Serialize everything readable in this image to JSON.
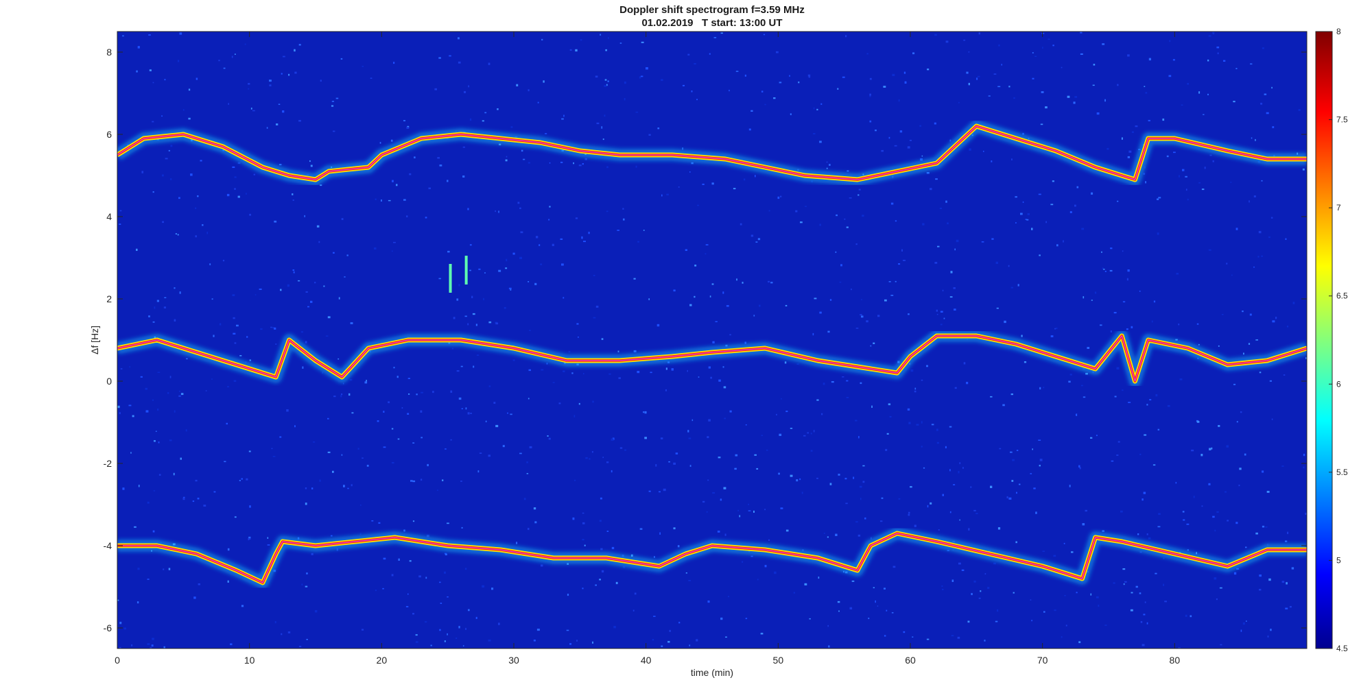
{
  "chart_data": {
    "type": "heatmap",
    "title": "Doppler shift spectrogram f=3.59 MHz",
    "subtitle": "01.02.2019   T start: 13:00 UT",
    "xlabel": "time (min)",
    "ylabel": "Δf [Hz]",
    "xlim": [
      0,
      90
    ],
    "ylim": [
      -6.5,
      8.5
    ],
    "xticks": [
      "0",
      "10",
      "20",
      "30",
      "40",
      "50",
      "60",
      "70",
      "80"
    ],
    "yticks": [
      "8",
      "6",
      "4",
      "2",
      "0",
      "-2",
      "-4",
      "-6"
    ],
    "colorbar": {
      "range": [
        4.5,
        8
      ],
      "ticks": [
        "8",
        "7.5",
        "7",
        "6.5",
        "6",
        "5.5",
        "5",
        "4.5"
      ],
      "colormap": "jet"
    },
    "grid": false,
    "traces": [
      {
        "x": [
          0,
          2,
          5,
          8,
          11,
          13,
          15,
          16,
          19,
          20,
          23,
          26,
          29,
          32,
          35,
          38,
          42,
          46,
          49,
          52,
          56,
          59,
          62,
          65,
          68,
          71,
          74,
          77,
          78,
          80,
          84,
          87,
          90
        ],
        "y": [
          5.5,
          5.9,
          6.0,
          5.7,
          5.2,
          5.0,
          4.9,
          5.1,
          5.2,
          5.5,
          5.9,
          6.0,
          5.9,
          5.8,
          5.6,
          5.5,
          5.5,
          5.4,
          5.2,
          5.0,
          4.9,
          5.1,
          5.3,
          6.2,
          5.9,
          5.6,
          5.2,
          4.9,
          5.9,
          5.9,
          5.6,
          5.4,
          5.4
        ]
      },
      {
        "x": [
          0,
          3,
          6,
          9,
          12,
          13,
          15,
          17,
          19,
          22,
          26,
          30,
          34,
          38,
          42,
          45,
          49,
          53,
          57,
          59,
          60,
          62,
          65,
          68,
          71,
          74,
          76,
          77,
          78,
          81,
          84,
          87,
          90
        ],
        "y": [
          0.8,
          1.0,
          0.7,
          0.4,
          0.1,
          1.0,
          0.5,
          0.1,
          0.8,
          1.0,
          1.0,
          0.8,
          0.5,
          0.5,
          0.6,
          0.7,
          0.8,
          0.5,
          0.3,
          0.2,
          0.6,
          1.1,
          1.1,
          0.9,
          0.6,
          0.3,
          1.1,
          0.0,
          1.0,
          0.8,
          0.4,
          0.5,
          0.8
        ]
      },
      {
        "x": [
          0,
          3,
          6,
          9,
          11,
          12,
          12.5,
          15,
          18,
          21,
          25,
          29,
          33,
          37,
          41,
          43,
          45,
          49,
          53,
          56,
          57,
          59,
          62,
          66,
          70,
          73,
          74,
          76,
          80,
          84,
          87,
          90
        ],
        "y": [
          -4.0,
          -4.0,
          -4.2,
          -4.6,
          -4.9,
          -4.2,
          -3.9,
          -4.0,
          -3.9,
          -3.8,
          -4.0,
          -4.1,
          -4.3,
          -4.3,
          -4.5,
          -4.2,
          -4.0,
          -4.1,
          -4.3,
          -4.6,
          -4.0,
          -3.7,
          -3.9,
          -4.2,
          -4.5,
          -4.8,
          -3.8,
          -3.9,
          -4.2,
          -4.5,
          -4.1,
          -4.1
        ]
      }
    ],
    "bursts": [
      {
        "x": 25.2,
        "y": 2.5
      },
      {
        "x": 26.4,
        "y": 2.7
      }
    ]
  }
}
